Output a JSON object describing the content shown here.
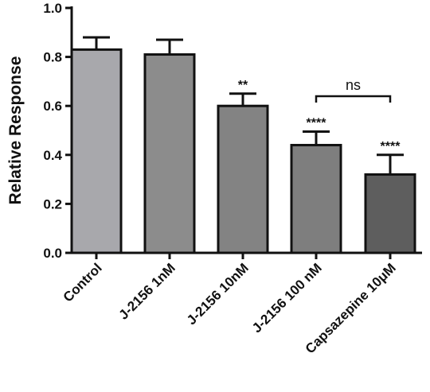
{
  "chart_data": {
    "type": "bar",
    "categories": [
      "Control",
      "J-2156 1nM",
      "J-2156 10nM",
      "J-2156 100 nM",
      "Capsazepine 10μM"
    ],
    "values": [
      0.83,
      0.81,
      0.6,
      0.44,
      0.32
    ],
    "errors": [
      0.05,
      0.06,
      0.05,
      0.055,
      0.08
    ],
    "significance": [
      "",
      "",
      "**",
      "****",
      "****"
    ],
    "bracket": {
      "from": 3,
      "to": 4,
      "label": "ns"
    },
    "ylabel": "Relative Response",
    "xlabel": "",
    "ylim": [
      0.0,
      1.0
    ],
    "yticks": [
      "0.0",
      "0.2",
      "0.4",
      "0.6",
      "0.8",
      "1.0"
    ],
    "grid": false,
    "legend": "none",
    "colors": [
      "#a8a8ac",
      "#8c8c8c",
      "#838383",
      "#7e7e7e",
      "#5e5e5e"
    ]
  }
}
